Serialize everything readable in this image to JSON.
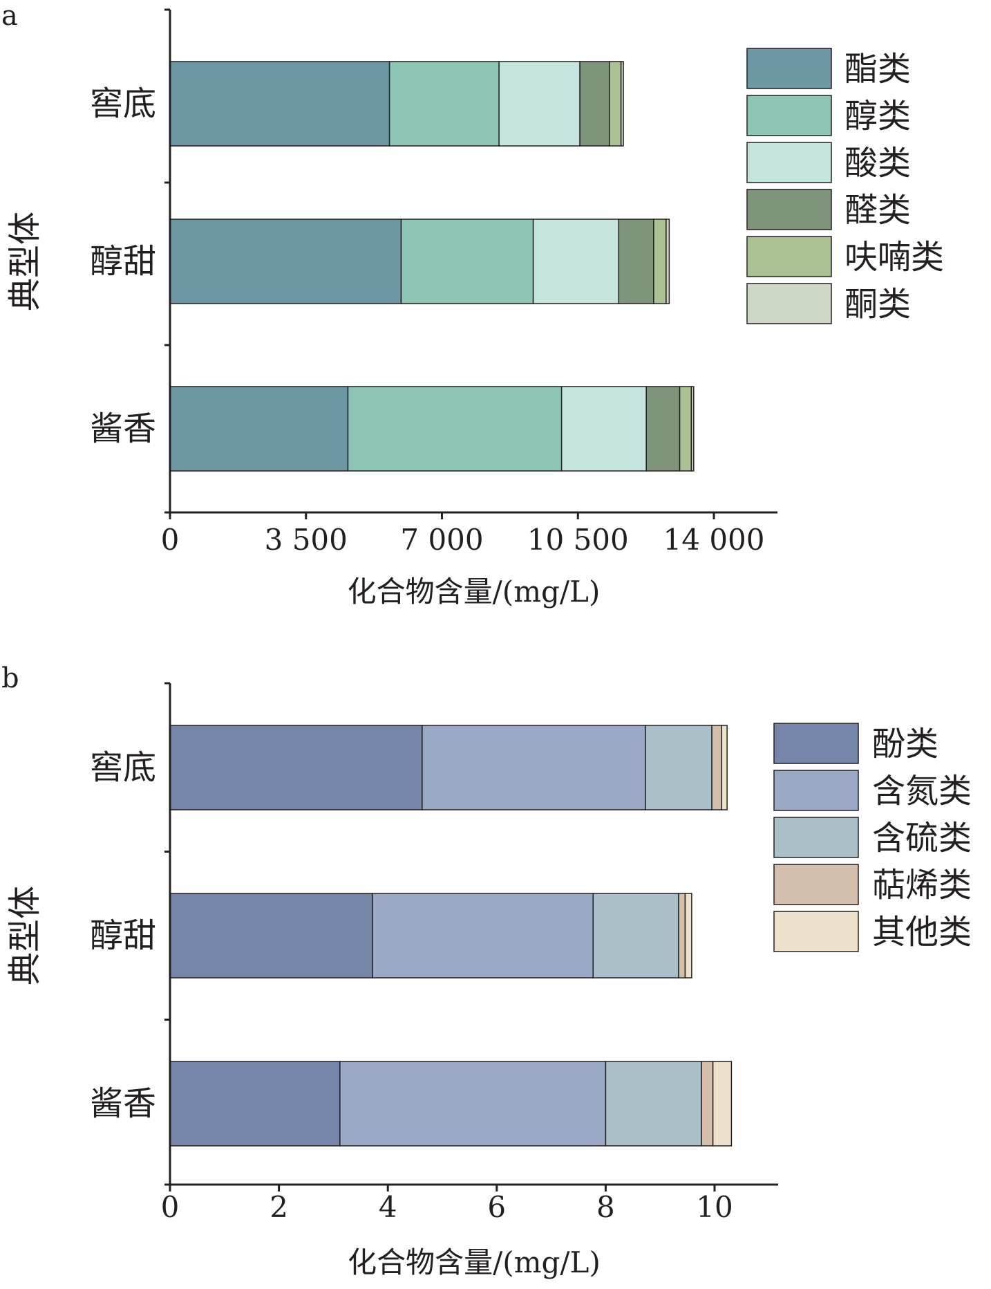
{
  "chart_data": [
    {
      "panel": "a",
      "type": "bar",
      "orientation": "horizontal",
      "stacked": true,
      "categories": [
        "窖底",
        "醇甜",
        "酱香"
      ],
      "xlabel": "化合物含量/(mg/L)",
      "ylabel": "典型体",
      "xlim": [
        0,
        14800
      ],
      "xticks": [
        0,
        3500,
        7000,
        10500,
        14000
      ],
      "xtick_labels": [
        "0",
        "3 500",
        "7 000",
        "10 500",
        "14 000"
      ],
      "legend_position": "top-right",
      "grid": false,
      "series": [
        {
          "name": "酯类",
          "color": "#6d97a4",
          "values": [
            5650,
            5950,
            4580
          ]
        },
        {
          "name": "醇类",
          "color": "#8cc4b5",
          "values": [
            2820,
            3400,
            5500
          ]
        },
        {
          "name": "酸类",
          "color": "#c6e4de",
          "values": [
            2080,
            2200,
            2180
          ]
        },
        {
          "name": "醛类",
          "color": "#7f957a",
          "values": [
            760,
            900,
            860
          ]
        },
        {
          "name": "呋喃类",
          "color": "#a9c193",
          "values": [
            300,
            320,
            300
          ]
        },
        {
          "name": "酮类",
          "color": "#cfd7c7",
          "values": [
            60,
            80,
            60
          ]
        }
      ]
    },
    {
      "panel": "b",
      "type": "bar",
      "orientation": "horizontal",
      "stacked": true,
      "categories": [
        "窖底",
        "醇甜",
        "酱香"
      ],
      "xlabel": "化合物含量/(mg/L)",
      "ylabel": "典型体",
      "xlim": [
        0,
        11.2
      ],
      "xticks": [
        0,
        2,
        4,
        6,
        8,
        10
      ],
      "xtick_labels": [
        "0",
        "2",
        "4",
        "6",
        "8",
        "10"
      ],
      "legend_position": "top-right",
      "grid": false,
      "series": [
        {
          "name": "酚类",
          "color": "#7686a8",
          "values": [
            4.63,
            3.72,
            3.12
          ]
        },
        {
          "name": "含氮类",
          "color": "#9aaac6",
          "values": [
            4.1,
            4.05,
            4.88
          ]
        },
        {
          "name": "含硫类",
          "color": "#a9c0c9",
          "values": [
            1.22,
            1.57,
            1.76
          ]
        },
        {
          "name": "萜烯类",
          "color": "#d4bfad",
          "values": [
            0.18,
            0.12,
            0.21
          ]
        },
        {
          "name": "其他类",
          "color": "#ede1c9",
          "values": [
            0.1,
            0.12,
            0.34
          ]
        }
      ]
    }
  ]
}
